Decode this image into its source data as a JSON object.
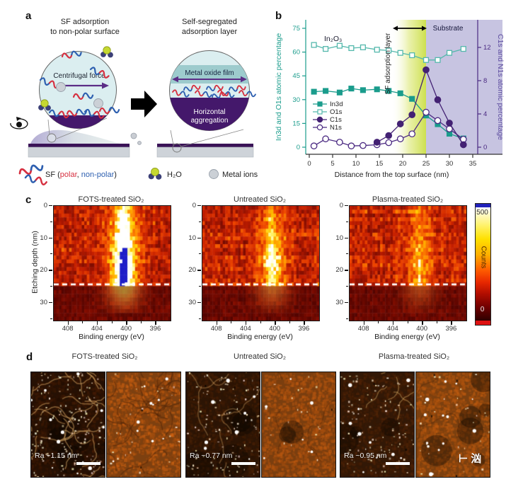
{
  "panels": {
    "a": "a",
    "b": "b",
    "c": "c",
    "d": "d"
  },
  "colors": {
    "teal": "#1a9c8c",
    "teal_light": "#54b8ac",
    "purple": "#432173",
    "purple_line": "#4b2a82",
    "lavender": "#c7c4e1",
    "gradient_green": "#cde04e",
    "sf_red": "#d63040",
    "sf_blue": "#2d5fb0",
    "dark_purple": "#44186b",
    "teal_band": "#9dcbcd",
    "heat_blue": "#1c1cc8",
    "axis_dark": "#333333"
  },
  "panel_a": {
    "left_title_line1": "SF adsorption",
    "left_title_line2": "to non-polar surface",
    "right_title_line1": "Self-segregated",
    "right_title_line2": "adsorption layer",
    "centrifugal_force": "Centrifugal force",
    "metal_oxide_film": "Metal oxide film",
    "horizontal_line1": "Horizontal",
    "horizontal_line2": "aggregation",
    "legend_sf_prefix": "SF (",
    "legend_polar": "polar",
    "legend_separator": ", ",
    "legend_nonpolar": "non-polar",
    "legend_suffix": ")",
    "legend_h2o": "H₂O",
    "legend_metal_ions": "Metal ions"
  },
  "chart_data": [
    {
      "id": "panel-b",
      "type": "line",
      "xlabel": "Distance from the top surface (nm)",
      "ylabel_left": "In3d and O1s atomic percentage",
      "ylabel_right": "C1s and N1s atomic percentage",
      "xlim": [
        -0.8,
        36
      ],
      "ylim_left": [
        0,
        80
      ],
      "ylim_right": [
        0,
        13.5
      ],
      "xticks": [
        0,
        5,
        10,
        15,
        20,
        25,
        30,
        35
      ],
      "yticks_left": [
        0,
        15,
        30,
        45,
        60,
        75
      ],
      "yticks_right": [
        0,
        4,
        8,
        12
      ],
      "x": [
        1,
        3.5,
        6.5,
        9,
        11.5,
        14.5,
        17,
        19.5,
        22,
        25,
        27.5,
        30,
        33
      ],
      "series": [
        {
          "name": "In3d",
          "axis": "left",
          "marker": "square",
          "filled": true,
          "color_key": "teal",
          "values": [
            35,
            35.5,
            34.5,
            37,
            36,
            36.5,
            35.5,
            34,
            30.5,
            20,
            14.5,
            8.5,
            5.5
          ]
        },
        {
          "name": "O1s",
          "axis": "left",
          "marker": "square",
          "filled": false,
          "color_key": "teal_light",
          "values": [
            64.5,
            62,
            64,
            62.5,
            63,
            61.5,
            61,
            59.5,
            58,
            55,
            55,
            59.5,
            62
          ]
        },
        {
          "name": "C1s",
          "axis": "right",
          "marker": "circle",
          "filled": true,
          "color_key": "purple",
          "values": [
            null,
            null,
            null,
            null,
            null,
            0.6,
            1.4,
            2.8,
            3.9,
            9.3,
            5.7,
            2.9,
            0.3
          ]
        },
        {
          "name": "N1s",
          "axis": "right",
          "marker": "circle",
          "filled": false,
          "color_key": "purple_line",
          "values": [
            0.15,
            1.0,
            0.6,
            0.15,
            0.2,
            0.3,
            0.55,
            1.0,
            1.6,
            4.2,
            3.2,
            2.2,
            0.95
          ]
        }
      ],
      "annotations": {
        "material": "In₂O₃",
        "sf_layer": "SF adsorption layer",
        "substrate": "Substrate"
      },
      "zones": {
        "gradient_start_nm": 17.5,
        "band_start_nm": 25
      },
      "legend_position": "left-middle",
      "grid": false
    },
    {
      "id": "panel-c",
      "type": "heatmap",
      "titles": [
        "FOTS-treated SiO₂",
        "Untreated SiO₂",
        "Plasma-treated SiO₂"
      ],
      "xlabel": "Binding energy (eV)",
      "ylabel": "Etching depth (nm)",
      "x_range_ev": [
        410,
        394
      ],
      "xticks": [
        408,
        404,
        400,
        396
      ],
      "y_range_nm": [
        0,
        35.5
      ],
      "yticks": [
        0,
        10,
        20,
        30
      ],
      "peak_center_ev": 400.4,
      "dashed_line_nm": 24.3,
      "colorbar": {
        "label": "Counts",
        "max_label": "500",
        "min_label": "0"
      },
      "panels": [
        {
          "name": "FOTS-treated SiO₂",
          "peak_strength": 1.0,
          "saturated": true,
          "seed": 11
        },
        {
          "name": "Untreated SiO₂",
          "peak_strength": 0.62,
          "saturated": false,
          "seed": 23
        },
        {
          "name": "Plasma-treated SiO₂",
          "peak_strength": 0.42,
          "saturated": false,
          "seed": 37
        }
      ]
    }
  ],
  "panel_d": {
    "titles": [
      "FOTS-treated SiO₂",
      "Untreated SiO₂",
      "Plasma-treated SiO₂"
    ],
    "ra_labels": [
      "Ra ~1.15 nm",
      "Ra ~0.77 nm",
      "Ra ~0.95 nm"
    ],
    "image_types": [
      "height",
      "phase",
      "height",
      "phase",
      "height",
      "phase"
    ],
    "watermark": "⊢ 汹"
  }
}
